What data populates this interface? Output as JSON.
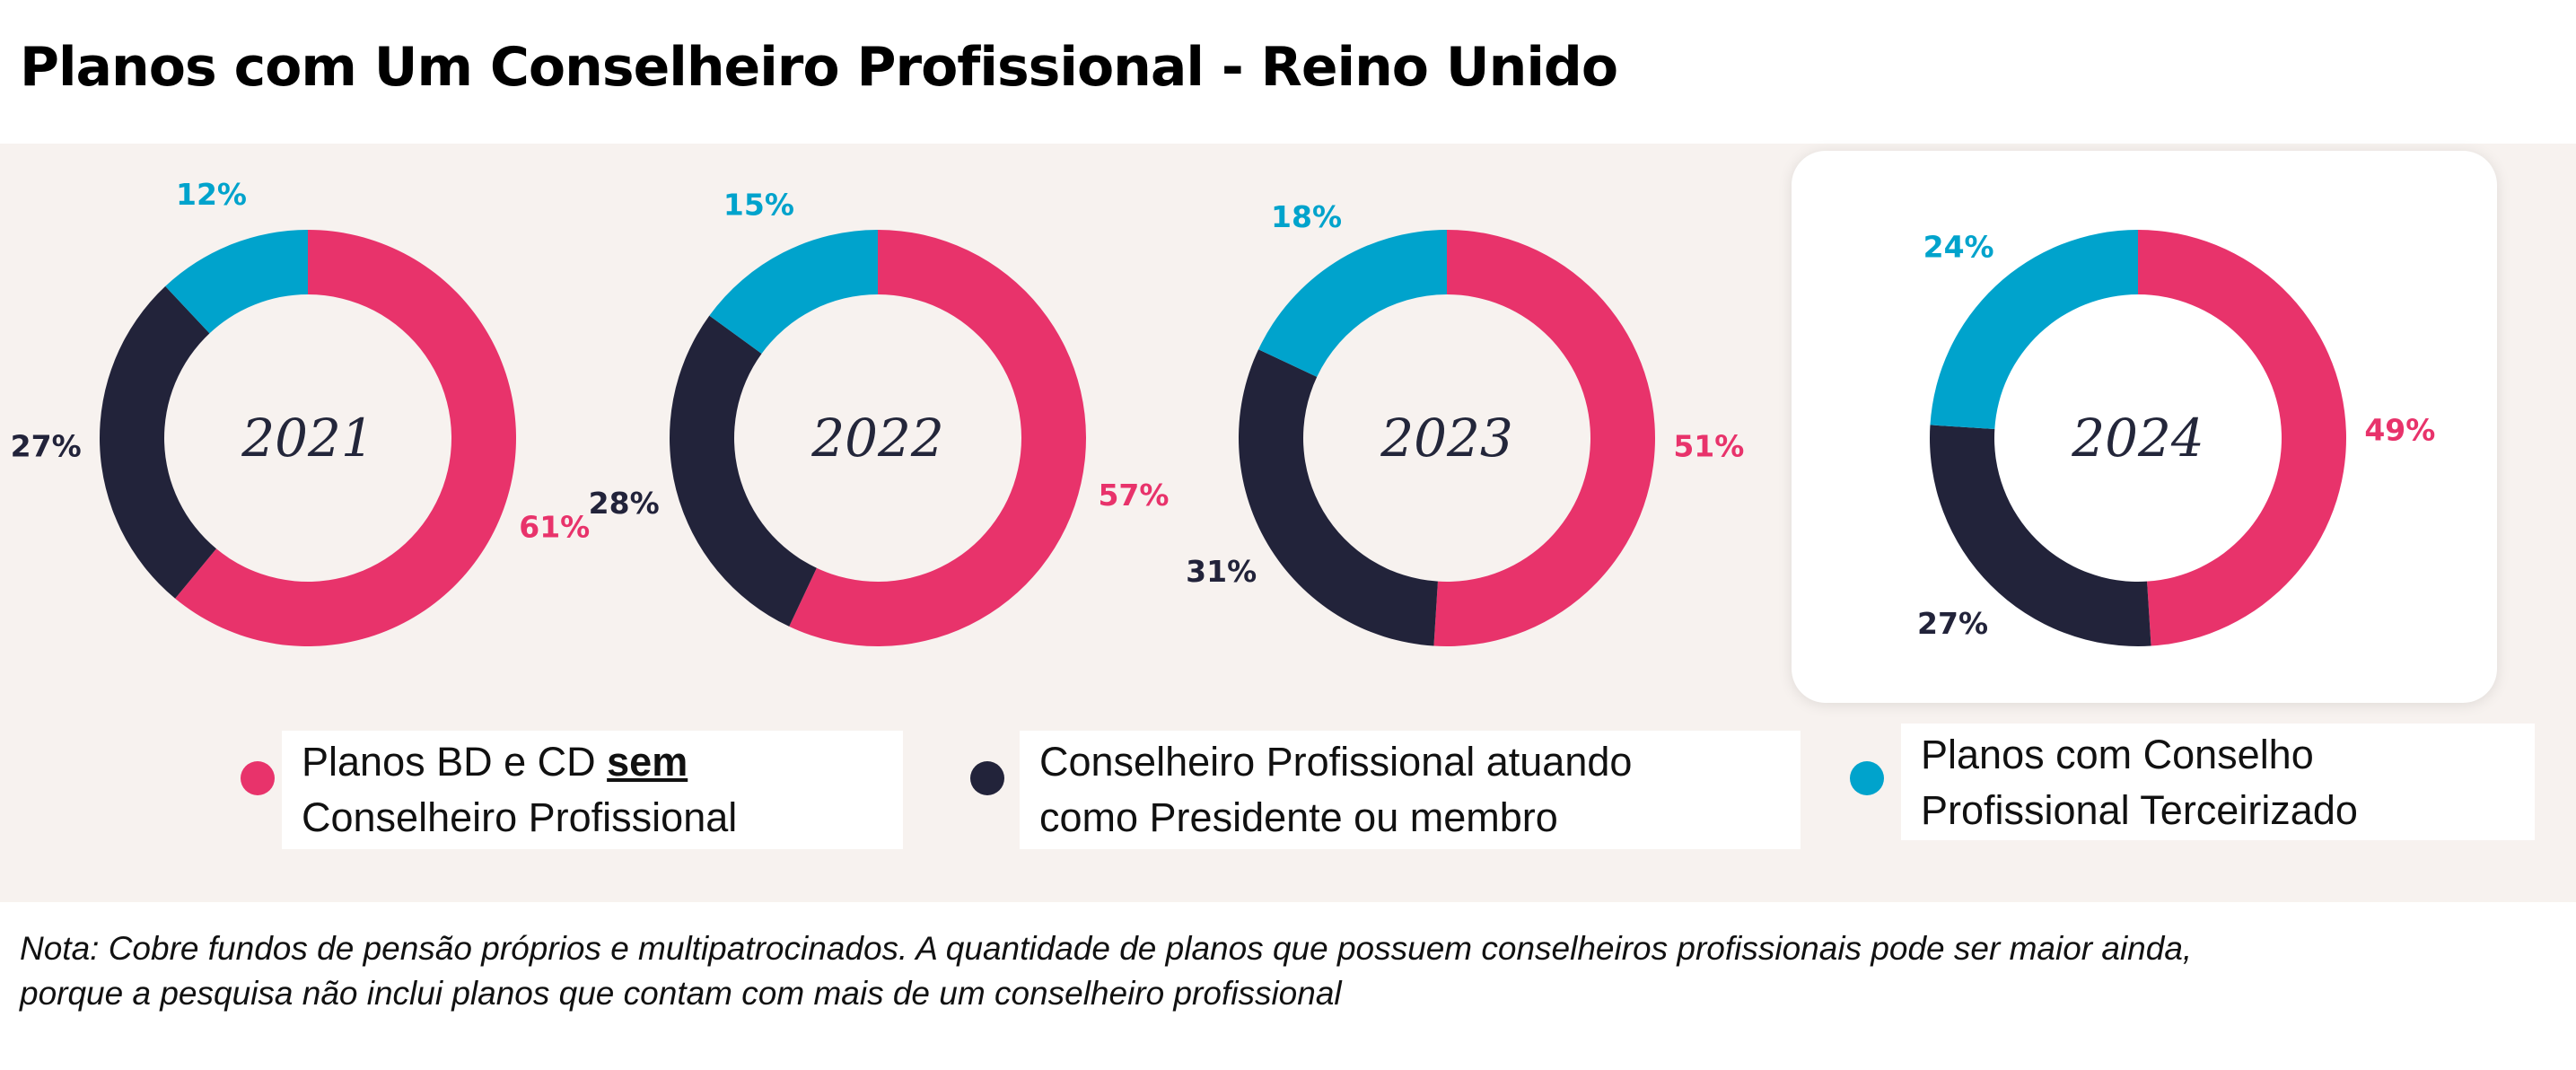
{
  "title": "Planos com Um Conselheiro Profissional - Reino Unido",
  "colors": {
    "sem": "#e8336b",
    "presidente": "#22233a",
    "terceirizado": "#00a3cc",
    "panel": "#f7f2ef"
  },
  "chart_data": {
    "type": "pie",
    "variant": "donut",
    "series_labels": [
      "Planos BD e CD sem Conselheiro Profissional",
      "Conselheiro Profissional atuando como Presidente ou membro",
      "Planos com Conselho Profissional Terceirizado"
    ],
    "charts": [
      {
        "year": "2021",
        "values": [
          61,
          27,
          12
        ],
        "labels": [
          "61%",
          "27%",
          "12%"
        ]
      },
      {
        "year": "2022",
        "values": [
          57,
          28,
          15
        ],
        "labels": [
          "57%",
          "28%",
          "15%"
        ]
      },
      {
        "year": "2023",
        "values": [
          51,
          31,
          18
        ],
        "labels": [
          "51%",
          "31%",
          "18%"
        ]
      },
      {
        "year": "2024",
        "values": [
          49,
          27,
          24
        ],
        "labels": [
          "49%",
          "27%",
          "24%"
        ],
        "highlighted": true
      }
    ]
  },
  "legend": [
    {
      "line1_pre": "Planos BD e CD ",
      "line1_em": "sem",
      "line2": "Conselheiro Profissional",
      "color_key": "sem"
    },
    {
      "line1": "Conselheiro Profissional atuando",
      "line2": "como Presidente ou membro",
      "color_key": "presidente"
    },
    {
      "line1": "Planos com Conselho",
      "line2": "Profissional Terceirizado",
      "color_key": "terceirizado"
    }
  ],
  "note": {
    "line1": "Nota: Cobre fundos de pensão próprios e multipatrocinados. A quantidade de planos que possuem conselheiros profissionais pode ser maior ainda,",
    "line2": "porque a pesquisa não inclui planos que contam com mais de um conselheiro profissional"
  }
}
